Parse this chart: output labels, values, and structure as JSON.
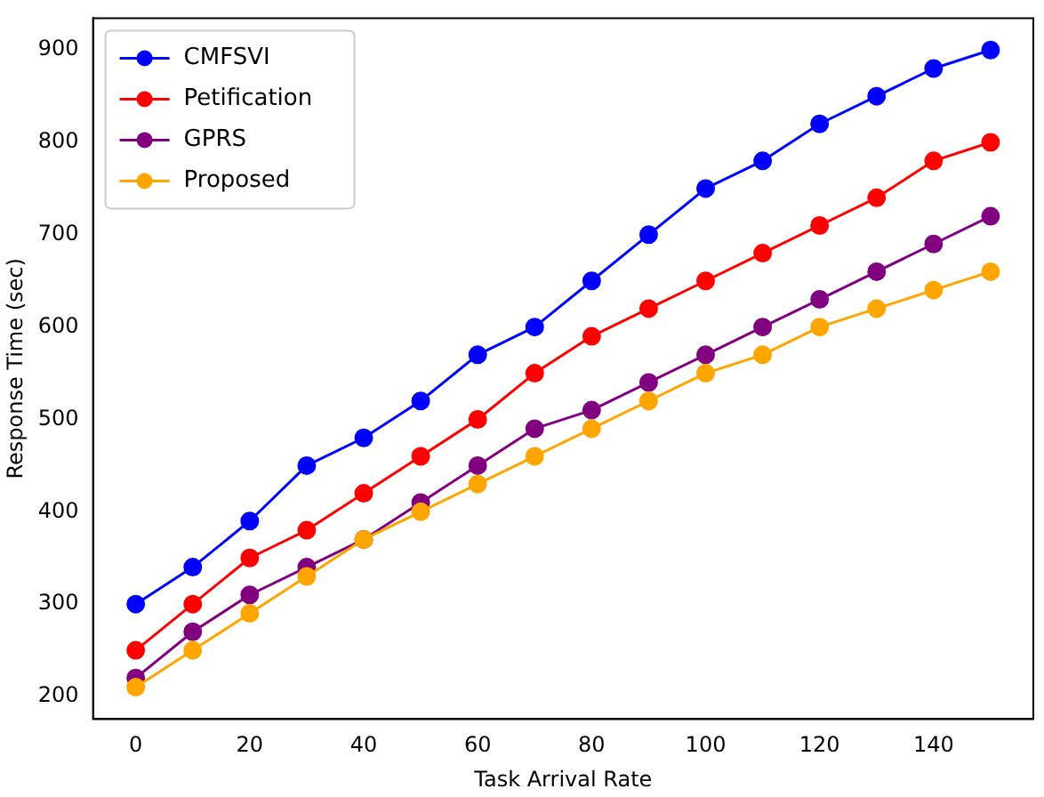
{
  "chart_data": {
    "type": "line",
    "xlabel": "Task Arrival Rate",
    "ylabel": "Response Time (sec)",
    "x": [
      0,
      10,
      20,
      30,
      40,
      50,
      60,
      70,
      80,
      90,
      100,
      110,
      120,
      130,
      140,
      150
    ],
    "series": [
      {
        "name": "CMFSVI",
        "color": "#0000ff",
        "values": [
          300,
          340,
          390,
          450,
          480,
          520,
          570,
          600,
          650,
          700,
          750,
          780,
          820,
          850,
          880,
          900
        ]
      },
      {
        "name": "Petification",
        "color": "#ff0000",
        "values": [
          250,
          300,
          350,
          380,
          420,
          460,
          500,
          550,
          590,
          620,
          650,
          680,
          710,
          740,
          780,
          800
        ]
      },
      {
        "name": "GPRS",
        "color": "#800080",
        "values": [
          220,
          270,
          310,
          340,
          370,
          410,
          450,
          490,
          510,
          540,
          570,
          600,
          630,
          660,
          690,
          720
        ]
      },
      {
        "name": "Proposed",
        "color": "#ffa500",
        "values": [
          210,
          250,
          290,
          330,
          370,
          400,
          430,
          460,
          490,
          520,
          550,
          570,
          600,
          620,
          640,
          660
        ]
      }
    ],
    "xlim": [
      -7.5,
      157.5
    ],
    "xticks": [
      0,
      20,
      40,
      60,
      80,
      100,
      120,
      140
    ],
    "ylim": [
      175.5,
      934.5
    ],
    "yticks": [
      200,
      300,
      400,
      500,
      600,
      700,
      800,
      900
    ],
    "grid": false,
    "legend": "top left",
    "marker": "circle",
    "line_style": "solid"
  }
}
